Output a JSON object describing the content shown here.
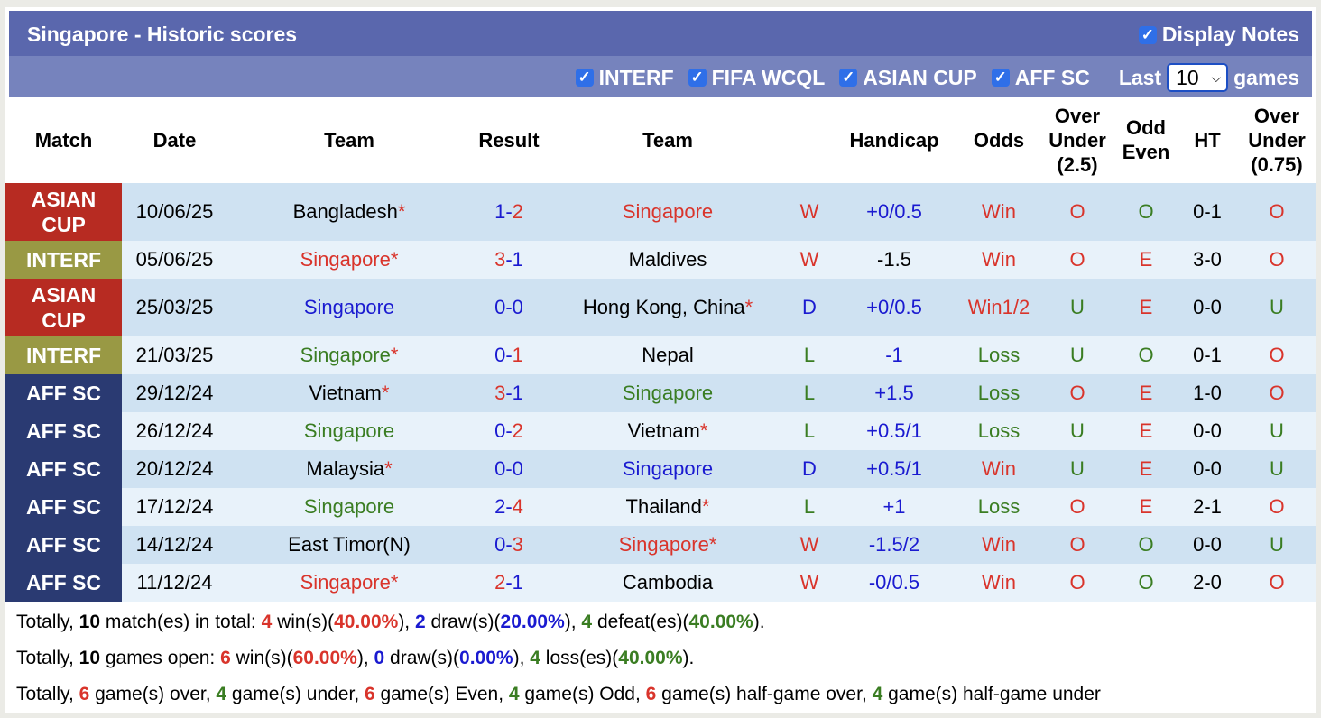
{
  "title": "Singapore - Historic scores",
  "display_notes": {
    "label": "Display Notes",
    "checked": true
  },
  "filters": [
    {
      "label": "INTERF",
      "checked": true
    },
    {
      "label": "FIFA WCQL",
      "checked": true
    },
    {
      "label": "ASIAN CUP",
      "checked": true
    },
    {
      "label": "AFF SC",
      "checked": true
    }
  ],
  "last": {
    "prefix": "Last",
    "value": "10",
    "suffix": "games"
  },
  "headers": [
    "Match",
    "Date",
    "Team",
    "Result",
    "Team",
    "",
    "Handicap",
    "Odds",
    "Over Under (2.5)",
    "Odd Even",
    "HT",
    "Over Under (0.75)"
  ],
  "competition_colors": {
    "ASIAN CUP": "#b72b22",
    "INTERF": "#999944",
    "AFF SC": "#2a3a72"
  },
  "rows": [
    {
      "match": "ASIAN CUP",
      "date": "10/06/25",
      "home": "Bangladesh",
      "home_star": true,
      "home_color": "black",
      "score_home": "1",
      "sh_color": "blue",
      "score_away": "2",
      "sa_color": "red",
      "away": "Singapore",
      "away_star": false,
      "away_color": "red",
      "wl": "W",
      "wl_color": "red",
      "handicap": "+0/0.5",
      "hc_color": "blue",
      "odds": "Win",
      "odds_color": "red",
      "ou": "O",
      "ou_color": "red",
      "oe": "O",
      "oe_color": "green",
      "ht": "0-1",
      "ou2": "O",
      "ou2_color": "red"
    },
    {
      "match": "INTERF",
      "date": "05/06/25",
      "home": "Singapore",
      "home_star": true,
      "home_color": "red",
      "score_home": "3",
      "sh_color": "red",
      "score_away": "1",
      "sa_color": "blue",
      "away": "Maldives",
      "away_star": false,
      "away_color": "black",
      "wl": "W",
      "wl_color": "red",
      "handicap": "-1.5",
      "hc_color": "black",
      "odds": "Win",
      "odds_color": "red",
      "ou": "O",
      "ou_color": "red",
      "oe": "E",
      "oe_color": "red",
      "ht": "3-0",
      "ou2": "O",
      "ou2_color": "red"
    },
    {
      "match": "ASIAN CUP",
      "date": "25/03/25",
      "home": "Singapore",
      "home_star": false,
      "home_color": "blue",
      "score_home": "0",
      "sh_color": "blue",
      "score_away": "0",
      "sa_color": "blue",
      "away": "Hong Kong, China",
      "away_star": true,
      "away_color": "black",
      "wl": "D",
      "wl_color": "blue",
      "handicap": "+0/0.5",
      "hc_color": "blue",
      "odds": "Win1/2",
      "odds_color": "red",
      "ou": "U",
      "ou_color": "green",
      "oe": "E",
      "oe_color": "red",
      "ht": "0-0",
      "ou2": "U",
      "ou2_color": "green"
    },
    {
      "match": "INTERF",
      "date": "21/03/25",
      "home": "Singapore",
      "home_star": true,
      "home_color": "green",
      "score_home": "0",
      "sh_color": "blue",
      "score_away": "1",
      "sa_color": "red",
      "away": "Nepal",
      "away_star": false,
      "away_color": "black",
      "wl": "L",
      "wl_color": "green",
      "handicap": "-1",
      "hc_color": "blue",
      "odds": "Loss",
      "odds_color": "green",
      "ou": "U",
      "ou_color": "green",
      "oe": "O",
      "oe_color": "green",
      "ht": "0-1",
      "ou2": "O",
      "ou2_color": "red"
    },
    {
      "match": "AFF SC",
      "date": "29/12/24",
      "home": "Vietnam",
      "home_star": true,
      "home_color": "black",
      "score_home": "3",
      "sh_color": "red",
      "score_away": "1",
      "sa_color": "blue",
      "away": "Singapore",
      "away_star": false,
      "away_color": "green",
      "wl": "L",
      "wl_color": "green",
      "handicap": "+1.5",
      "hc_color": "blue",
      "odds": "Loss",
      "odds_color": "green",
      "ou": "O",
      "ou_color": "red",
      "oe": "E",
      "oe_color": "red",
      "ht": "1-0",
      "ou2": "O",
      "ou2_color": "red"
    },
    {
      "match": "AFF SC",
      "date": "26/12/24",
      "home": "Singapore",
      "home_star": false,
      "home_color": "green",
      "score_home": "0",
      "sh_color": "blue",
      "score_away": "2",
      "sa_color": "red",
      "away": "Vietnam",
      "away_star": true,
      "away_color": "black",
      "wl": "L",
      "wl_color": "green",
      "handicap": "+0.5/1",
      "hc_color": "blue",
      "odds": "Loss",
      "odds_color": "green",
      "ou": "U",
      "ou_color": "green",
      "oe": "E",
      "oe_color": "red",
      "ht": "0-0",
      "ou2": "U",
      "ou2_color": "green"
    },
    {
      "match": "AFF SC",
      "date": "20/12/24",
      "home": "Malaysia",
      "home_star": true,
      "home_color": "black",
      "score_home": "0",
      "sh_color": "blue",
      "score_away": "0",
      "sa_color": "blue",
      "away": "Singapore",
      "away_star": false,
      "away_color": "blue",
      "wl": "D",
      "wl_color": "blue",
      "handicap": "+0.5/1",
      "hc_color": "blue",
      "odds": "Win",
      "odds_color": "red",
      "ou": "U",
      "ou_color": "green",
      "oe": "E",
      "oe_color": "red",
      "ht": "0-0",
      "ou2": "U",
      "ou2_color": "green"
    },
    {
      "match": "AFF SC",
      "date": "17/12/24",
      "home": "Singapore",
      "home_star": false,
      "home_color": "green",
      "score_home": "2",
      "sh_color": "blue",
      "score_away": "4",
      "sa_color": "red",
      "away": "Thailand",
      "away_star": true,
      "away_color": "black",
      "wl": "L",
      "wl_color": "green",
      "handicap": "+1",
      "hc_color": "blue",
      "odds": "Loss",
      "odds_color": "green",
      "ou": "O",
      "ou_color": "red",
      "oe": "E",
      "oe_color": "red",
      "ht": "2-1",
      "ou2": "O",
      "ou2_color": "red"
    },
    {
      "match": "AFF SC",
      "date": "14/12/24",
      "home": "East Timor(N)",
      "home_star": false,
      "home_color": "black",
      "score_home": "0",
      "sh_color": "blue",
      "score_away": "3",
      "sa_color": "red",
      "away": "Singapore",
      "away_star": true,
      "away_color": "red",
      "wl": "W",
      "wl_color": "red",
      "handicap": "-1.5/2",
      "hc_color": "blue",
      "odds": "Win",
      "odds_color": "red",
      "ou": "O",
      "ou_color": "red",
      "oe": "O",
      "oe_color": "green",
      "ht": "0-0",
      "ou2": "U",
      "ou2_color": "green"
    },
    {
      "match": "AFF SC",
      "date": "11/12/24",
      "home": "Singapore",
      "home_star": true,
      "home_color": "red",
      "score_home": "2",
      "sh_color": "red",
      "score_away": "1",
      "sa_color": "blue",
      "away": "Cambodia",
      "away_star": false,
      "away_color": "black",
      "wl": "W",
      "wl_color": "red",
      "handicap": "-0/0.5",
      "hc_color": "blue",
      "odds": "Win",
      "odds_color": "red",
      "ou": "O",
      "ou_color": "red",
      "oe": "O",
      "oe_color": "green",
      "ht": "2-0",
      "ou2": "O",
      "ou2_color": "red"
    }
  ],
  "summary": [
    [
      {
        "t": "Totally, "
      },
      {
        "t": "10",
        "c": "black",
        "b": true
      },
      {
        "t": " match(es) in total: "
      },
      {
        "t": "4",
        "c": "red",
        "b": true
      },
      {
        "t": " win(s)("
      },
      {
        "t": "40.00%",
        "c": "red",
        "b": true
      },
      {
        "t": "), "
      },
      {
        "t": "2",
        "c": "blue",
        "b": true
      },
      {
        "t": " draw(s)("
      },
      {
        "t": "20.00%",
        "c": "blue",
        "b": true
      },
      {
        "t": "), "
      },
      {
        "t": "4",
        "c": "green",
        "b": true
      },
      {
        "t": " defeat(es)("
      },
      {
        "t": "40.00%",
        "c": "green",
        "b": true
      },
      {
        "t": ")."
      }
    ],
    [
      {
        "t": "Totally, "
      },
      {
        "t": "10",
        "c": "black",
        "b": true
      },
      {
        "t": " games open: "
      },
      {
        "t": "6",
        "c": "red",
        "b": true
      },
      {
        "t": " win(s)("
      },
      {
        "t": "60.00%",
        "c": "red",
        "b": true
      },
      {
        "t": "), "
      },
      {
        "t": "0",
        "c": "blue",
        "b": true
      },
      {
        "t": " draw(s)("
      },
      {
        "t": "0.00%",
        "c": "blue",
        "b": true
      },
      {
        "t": "), "
      },
      {
        "t": "4",
        "c": "green",
        "b": true
      },
      {
        "t": " loss(es)("
      },
      {
        "t": "40.00%",
        "c": "green",
        "b": true
      },
      {
        "t": ")."
      }
    ],
    [
      {
        "t": "Totally, "
      },
      {
        "t": "6",
        "c": "red",
        "b": true
      },
      {
        "t": " game(s) over, "
      },
      {
        "t": "4",
        "c": "green",
        "b": true
      },
      {
        "t": " game(s) under, "
      },
      {
        "t": "6",
        "c": "red",
        "b": true
      },
      {
        "t": " game(s) Even, "
      },
      {
        "t": "4",
        "c": "green",
        "b": true
      },
      {
        "t": " game(s) Odd, "
      },
      {
        "t": "6",
        "c": "red",
        "b": true
      },
      {
        "t": " game(s) half-game over, "
      },
      {
        "t": "4",
        "c": "green",
        "b": true
      },
      {
        "t": " game(s) half-game under"
      }
    ]
  ]
}
